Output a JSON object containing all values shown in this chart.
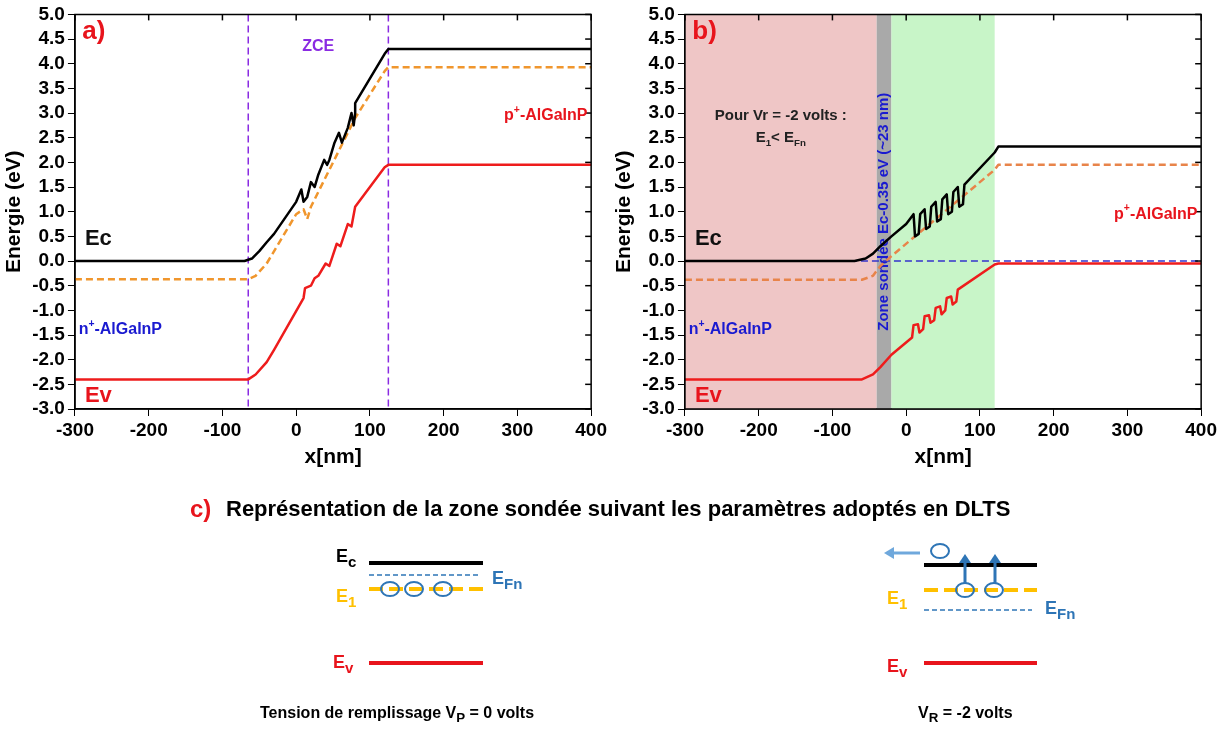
{
  "chart_data": [
    {
      "type": "line",
      "xlabel": "x[nm]",
      "ylabel": "Energie (eV)",
      "xlim": [
        -300,
        400
      ],
      "xticks": [
        -300,
        -200,
        -100,
        0,
        100,
        200,
        300,
        400
      ],
      "ylim": [
        -3,
        5
      ],
      "yticks": [
        {
          "value": -3,
          "label": "-3.0"
        },
        {
          "value": -2.5,
          "label": "-2.5"
        },
        {
          "value": -2,
          "label": "-2.0"
        },
        {
          "value": -1.5,
          "label": "-1.5"
        },
        {
          "value": -1,
          "label": "-1.0"
        },
        {
          "value": -0.5,
          "label": "-0.5"
        },
        {
          "value": 0,
          "label": "0.0"
        },
        {
          "value": 0.5,
          "label": "0.5"
        },
        {
          "value": 1,
          "label": "1.0"
        },
        {
          "value": 1.5,
          "label": "1.5"
        },
        {
          "value": 2,
          "label": "2.0"
        },
        {
          "value": 2.5,
          "label": "2.5"
        },
        {
          "value": 3,
          "label": "3.0"
        },
        {
          "value": 3.5,
          "label": "3.5"
        },
        {
          "value": 4,
          "label": "4.0"
        },
        {
          "value": 4.5,
          "label": "4.5"
        },
        {
          "value": 5,
          "label": "5.0"
        }
      ],
      "grid": false,
      "legend": false,
      "marker": "none",
      "series": [
        {
          "name": "Ec",
          "color": "#000000",
          "line_style": "solid",
          "x": [
            -300,
            -70,
            -60,
            -50,
            -40,
            -30,
            0,
            7,
            10,
            15,
            20,
            25,
            30,
            38,
            42,
            45,
            52,
            58,
            62,
            70,
            75,
            78,
            80,
            80,
            120,
            125,
            400
          ],
          "values": [
            0,
            0,
            0.05,
            0.2,
            0.38,
            0.55,
            1.2,
            1.45,
            1.2,
            1.3,
            1.6,
            1.5,
            1.75,
            2.05,
            1.95,
            2.05,
            2.4,
            2.6,
            2.4,
            2.7,
            3,
            2.75,
            3,
            3.2,
            4.2,
            4.3,
            4.3
          ]
        },
        {
          "color": "#f0962d",
          "line_style": "dashed",
          "x": [
            -300,
            -65,
            -55,
            -40,
            0,
            10,
            15,
            20,
            80,
            120,
            125,
            400
          ],
          "values": [
            -0.37,
            -0.37,
            -0.3,
            -0.05,
            0.95,
            1.05,
            0.85,
            1.1,
            2.9,
            3.85,
            3.93,
            3.93
          ]
        },
        {
          "name": "Ev",
          "color": "#ee1c1c",
          "line_style": "solid",
          "x": [
            -300,
            -65,
            -55,
            -40,
            -30,
            10,
            12,
            20,
            25,
            30,
            40,
            45,
            55,
            60,
            70,
            75,
            80,
            120,
            125,
            400
          ],
          "values": [
            -2.4,
            -2.4,
            -2.3,
            -2.05,
            -1.8,
            -0.75,
            -0.55,
            -0.5,
            -0.35,
            -0.3,
            -0.05,
            -0.1,
            0.35,
            0.3,
            0.75,
            0.7,
            1.1,
            1.9,
            1.95,
            1.95
          ]
        }
      ],
      "ref_lines": [
        {
          "axis": "x",
          "value": -65,
          "color": "#8a2be2",
          "line_style": "dashed"
        },
        {
          "axis": "x",
          "value": 125,
          "color": "#8a2be2",
          "line_style": "dashed"
        }
      ],
      "annotations": [
        "a)",
        "ZCE",
        "n$^{+}$-AlGaInP",
        "p$^{+}$-AlGaInP"
      ]
    },
    {
      "type": "line",
      "xlabel": "x[nm]",
      "ylabel": "Energie (eV)",
      "xlim": [
        -300,
        400
      ],
      "xticks": [
        -300,
        -200,
        -100,
        0,
        100,
        200,
        300,
        400
      ],
      "ylim": [
        -3,
        5
      ],
      "yticks": [
        {
          "value": -3,
          "label": "-3.0"
        },
        {
          "value": -2.5,
          "label": "-2.5"
        },
        {
          "value": -2,
          "label": "-2.0"
        },
        {
          "value": -1.5,
          "label": "-1.5"
        },
        {
          "value": -1,
          "label": "-1.0"
        },
        {
          "value": -0.5,
          "label": "-0.5"
        },
        {
          "value": 0,
          "label": "0.0"
        },
        {
          "value": 0.5,
          "label": "0.5"
        },
        {
          "value": 1,
          "label": "1.0"
        },
        {
          "value": 1.5,
          "label": "1.5"
        },
        {
          "value": 2,
          "label": "2.0"
        },
        {
          "value": 2.5,
          "label": "2.5"
        },
        {
          "value": 3,
          "label": "3.0"
        },
        {
          "value": 3.5,
          "label": "3.5"
        },
        {
          "value": 4,
          "label": "4.0"
        },
        {
          "value": 4.5,
          "label": "4.5"
        },
        {
          "value": 5,
          "label": "5.0"
        }
      ],
      "grid": false,
      "legend": false,
      "marker": "none",
      "bands": [
        {
          "axis": "x",
          "from": -300,
          "to": -40,
          "color": "#efc6c6"
        },
        {
          "axis": "x",
          "from": -40,
          "to": -20,
          "color": "#a9a9a9",
          "label": "Zone sondée Ec-0.35 eV (~23 nm)"
        },
        {
          "axis": "x",
          "from": -20,
          "to": 120,
          "color": "#c8f5c8"
        }
      ],
      "ref_lines": [
        {
          "axis": "y",
          "value": 0,
          "color": "#3333cc",
          "line_style": "dashed"
        }
      ],
      "series": [
        {
          "name": "Ec",
          "color": "#000000",
          "line_style": "solid",
          "x": [
            -300,
            -70,
            -55,
            -45,
            -35,
            -20,
            0,
            10,
            12,
            17,
            19,
            25,
            27,
            32,
            34,
            40,
            42,
            47,
            49,
            55,
            57,
            62,
            64,
            70,
            72,
            77,
            79,
            120,
            125,
            400
          ],
          "values": [
            0,
            0,
            0.05,
            0.15,
            0.3,
            0.5,
            0.75,
            0.95,
            0.5,
            0.55,
            0.95,
            1.05,
            0.65,
            0.7,
            1.1,
            1.2,
            0.8,
            0.85,
            1.25,
            1.35,
            0.95,
            1,
            1.4,
            1.5,
            1.1,
            1.15,
            1.55,
            2.2,
            2.32,
            2.32
          ]
        },
        {
          "color": "#e8844a",
          "line_style": "dashed",
          "x": [
            -300,
            -60,
            -45,
            -35,
            -20,
            120,
            125,
            400
          ],
          "values": [
            -0.38,
            -0.38,
            -0.3,
            -0.1,
            0.1,
            1.85,
            1.95,
            1.95
          ]
        },
        {
          "name": "Ev",
          "color": "#ee1c1c",
          "line_style": "solid",
          "x": [
            -300,
            -60,
            -45,
            -35,
            -20,
            8,
            10,
            16,
            18,
            23,
            25,
            31,
            33,
            38,
            40,
            46,
            48,
            53,
            55,
            61,
            63,
            68,
            70,
            120,
            125,
            400
          ],
          "values": [
            -2.4,
            -2.4,
            -2.3,
            -2.15,
            -1.9,
            -1.55,
            -1.3,
            -1.28,
            -1.45,
            -1.38,
            -1.12,
            -1.1,
            -1.25,
            -1.2,
            -0.95,
            -0.92,
            -1.08,
            -1,
            -0.75,
            -0.72,
            -0.88,
            -0.82,
            -0.58,
            -0.07,
            -0.05,
            -0.05
          ]
        }
      ],
      "annotations": [
        "b)",
        "n$^{+}$-AlGaInP",
        "p$^{+}$-AlGaInP",
        "Pour Vr = -2 volts :",
        "E$_{1}$< E$_{Fn}$"
      ]
    },
    {
      "type": "other",
      "title": "Représentation de la zone sondée suivant les paramètres adoptés en DLTS",
      "annotations": [
        "c)",
        "E$_{c}$",
        "E$_{Fn}$",
        "E$_{1}$",
        "E$_{v}$",
        "Tension de remplissage V$_{P}$ = 0 volts",
        "E$_{1}$",
        "E$_{Fn}$",
        "E$_{v}$",
        "V$_{R}$ = -2 volts"
      ]
    }
  ]
}
